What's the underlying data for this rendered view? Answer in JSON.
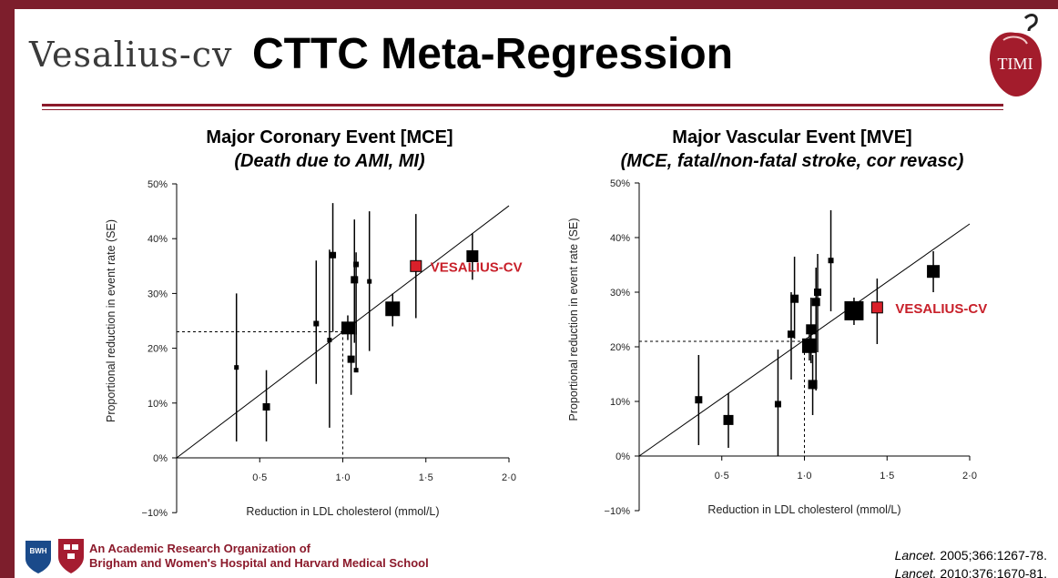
{
  "header": {
    "logo_text": "Vesalius-cv",
    "title": "CTTC Meta-Regression",
    "right_logo_text": "TIMI"
  },
  "panels": {
    "mce": {
      "title": "Major Coronary Event [MCE]",
      "subtitle": "(Death due to AMI, MI)"
    },
    "mve": {
      "title": "Major Vascular Event [MVE]",
      "subtitle": "(MCE, fatal/non-fatal stroke, cor revasc)"
    }
  },
  "footer": {
    "org_line1": "An Academic Research Organization of",
    "org_line2": "Brigham and Women's Hospital and Harvard Medical School",
    "bwh_logo_text": "BWH",
    "ref1_journal": "Lancet.",
    "ref1_rest": " 2005;366:1267-78.",
    "ref2_journal": "Lancet.",
    "ref2_rest": " 2010;376:1670-81."
  },
  "colors": {
    "brand": "#8b1a2b",
    "highlight": "#d9202a",
    "highlight_label": "#c8202a"
  },
  "chart_data": [
    {
      "type": "scatter",
      "title": "Major Coronary Event [MCE]",
      "subtitle": "(Death due to AMI, MI)",
      "xlabel": "Reduction in LDL cholesterol (mmol/L)",
      "ylabel": "Proportional reduction in event rate (SE)",
      "xlim": [
        0,
        2.0
      ],
      "ylim": [
        -10,
        50
      ],
      "xticks": [
        0.5,
        1.0,
        1.5,
        2.0
      ],
      "xtick_labels": [
        "0·5",
        "1·0",
        "1·5",
        "2·0"
      ],
      "yticks": [
        -10,
        0,
        10,
        20,
        30,
        40,
        50
      ],
      "ytick_labels": [
        "−10%",
        "0%",
        "10%",
        "20%",
        "30%",
        "40%",
        "50%"
      ],
      "regression_line": [
        [
          0,
          0
        ],
        [
          2.0,
          46
        ]
      ],
      "reference": {
        "x": 1.0,
        "y": 23
      },
      "points": [
        {
          "x": 0.36,
          "y": 16.5,
          "lo": 3,
          "hi": 30,
          "size": 4
        },
        {
          "x": 0.54,
          "y": 9.3,
          "lo": 3,
          "hi": 16,
          "size": 7
        },
        {
          "x": 0.84,
          "y": 24.5,
          "lo": 13.5,
          "hi": 36,
          "size": 5
        },
        {
          "x": 0.92,
          "y": 21.5,
          "lo": 5.5,
          "hi": 38,
          "size": 4
        },
        {
          "x": 0.94,
          "y": 37,
          "lo": 23,
          "hi": 46.5,
          "size": 6
        },
        {
          "x": 1.03,
          "y": 23.7,
          "lo": 21.5,
          "hi": 26,
          "size": 13
        },
        {
          "x": 1.05,
          "y": 18,
          "lo": 11.5,
          "hi": 24,
          "size": 7
        },
        {
          "x": 1.07,
          "y": 32.5,
          "lo": 21,
          "hi": 43.5,
          "size": 7
        },
        {
          "x": 1.08,
          "y": 35.3,
          "lo": 22.5,
          "hi": 37.5,
          "size": 5
        },
        {
          "x": 1.08,
          "y": 16,
          "lo": 16,
          "hi": 25,
          "size": 4
        },
        {
          "x": 1.16,
          "y": 32.2,
          "lo": 19.5,
          "hi": 45,
          "size": 4
        },
        {
          "x": 1.3,
          "y": 27.2,
          "lo": 24,
          "hi": 30,
          "size": 15
        },
        {
          "x": 1.44,
          "y": 35,
          "lo": 25.5,
          "hi": 44.5,
          "size": 12,
          "highlight": true,
          "label": "VESALIUS-CV"
        },
        {
          "x": 1.78,
          "y": 36.8,
          "lo": 32.5,
          "hi": 41,
          "size": 12
        }
      ]
    },
    {
      "type": "scatter",
      "title": "Major Vascular Event [MVE]",
      "subtitle": "(MCE, fatal/non-fatal stroke, cor revasc)",
      "xlabel": "Reduction in LDL cholesterol (mmol/L)",
      "ylabel": "Proportional reduction in event rate (SE)",
      "xlim": [
        0,
        2.0
      ],
      "ylim": [
        -10,
        50
      ],
      "xticks": [
        0.5,
        1.0,
        1.5,
        2.0
      ],
      "xtick_labels": [
        "0·5",
        "1·0",
        "1·5",
        "2·0"
      ],
      "yticks": [
        -10,
        0,
        10,
        20,
        30,
        40,
        50
      ],
      "ytick_labels": [
        "−10%",
        "0%",
        "10%",
        "20%",
        "30%",
        "40%",
        "50%"
      ],
      "regression_line": [
        [
          0,
          0
        ],
        [
          2.0,
          42.5
        ]
      ],
      "reference": {
        "x": 1.0,
        "y": 21
      },
      "points": [
        {
          "x": 0.36,
          "y": 10.3,
          "lo": 2,
          "hi": 18.5,
          "size": 7
        },
        {
          "x": 0.54,
          "y": 6.6,
          "lo": 1.5,
          "hi": 11.5,
          "size": 10
        },
        {
          "x": 0.84,
          "y": 9.5,
          "lo": 0,
          "hi": 19.5,
          "size": 6
        },
        {
          "x": 0.92,
          "y": 22.3,
          "lo": 14,
          "hi": 30,
          "size": 7
        },
        {
          "x": 0.94,
          "y": 28.8,
          "lo": 21.5,
          "hi": 36.5,
          "size": 8
        },
        {
          "x": 1.03,
          "y": 20.2,
          "lo": 17.5,
          "hi": 23,
          "size": 15
        },
        {
          "x": 1.04,
          "y": 23.2,
          "lo": 17,
          "hi": 29,
          "size": 10
        },
        {
          "x": 1.05,
          "y": 13.1,
          "lo": 7.5,
          "hi": 18.5,
          "size": 9
        },
        {
          "x": 1.07,
          "y": 28.2,
          "lo": 12,
          "hi": 34.5,
          "size": 8
        },
        {
          "x": 1.08,
          "y": 30,
          "lo": 19,
          "hi": 37,
          "size": 7
        },
        {
          "x": 1.16,
          "y": 35.8,
          "lo": 26.5,
          "hi": 45,
          "size": 5
        },
        {
          "x": 1.3,
          "y": 26.6,
          "lo": 24,
          "hi": 29,
          "size": 20
        },
        {
          "x": 1.44,
          "y": 27.2,
          "lo": 20.5,
          "hi": 32.5,
          "size": 12,
          "highlight": true,
          "label": "VESALIUS-CV"
        },
        {
          "x": 1.78,
          "y": 33.8,
          "lo": 30,
          "hi": 37.5,
          "size": 13
        }
      ]
    }
  ]
}
